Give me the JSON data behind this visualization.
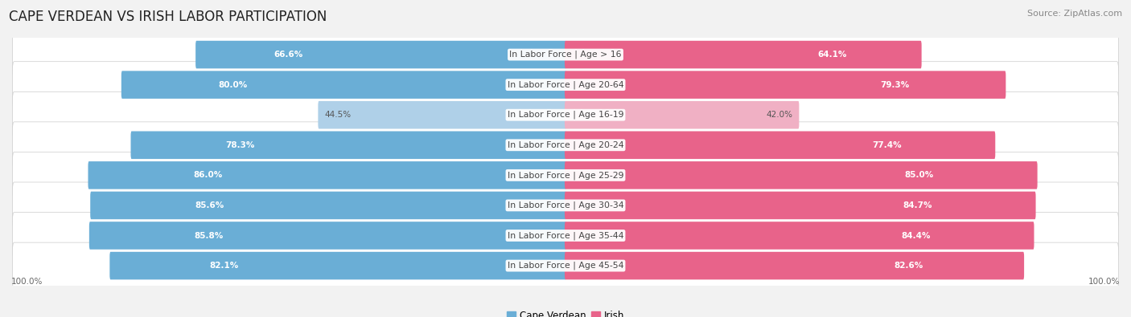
{
  "title": "CAPE VERDEAN VS IRISH LABOR PARTICIPATION",
  "source": "Source: ZipAtlas.com",
  "categories": [
    "In Labor Force | Age > 16",
    "In Labor Force | Age 20-64",
    "In Labor Force | Age 16-19",
    "In Labor Force | Age 20-24",
    "In Labor Force | Age 25-29",
    "In Labor Force | Age 30-34",
    "In Labor Force | Age 35-44",
    "In Labor Force | Age 45-54"
  ],
  "cape_verdean": [
    66.6,
    80.0,
    44.5,
    78.3,
    86.0,
    85.6,
    85.8,
    82.1
  ],
  "irish": [
    64.1,
    79.3,
    42.0,
    77.4,
    85.0,
    84.7,
    84.4,
    82.6
  ],
  "cape_verdean_color_full": "#6aaed6",
  "cape_verdean_color_light": "#afd0e8",
  "irish_color_full": "#e8638a",
  "irish_color_light": "#f0b0c4",
  "background_color": "#f2f2f2",
  "row_bg_light": "#fafafa",
  "row_bg_dark": "#eeeeee",
  "max_value": 100.0,
  "bar_height": 0.62,
  "label_fontsize": 7.8,
  "title_fontsize": 12,
  "source_fontsize": 8,
  "legend_fontsize": 8.5,
  "value_fontsize": 7.5,
  "axis_label_fontsize": 7.5
}
